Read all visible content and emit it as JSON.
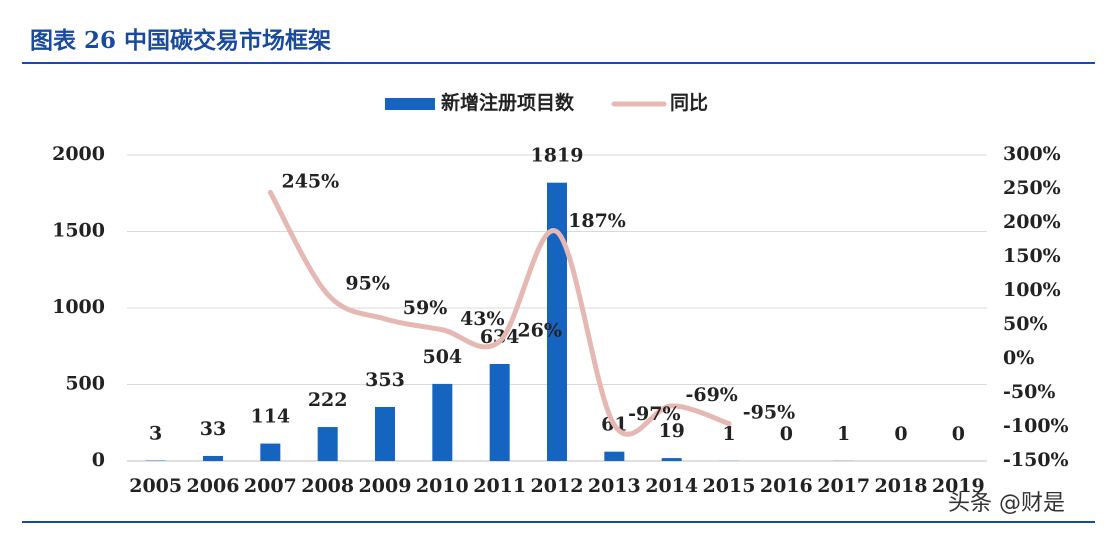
{
  "chart_data": {
    "type": "bar",
    "title": "图表 26   中国碳交易市场框架",
    "categories": [
      "2005",
      "2006",
      "2007",
      "2008",
      "2009",
      "2010",
      "2011",
      "2012",
      "2013",
      "2014",
      "2015",
      "2016",
      "2017",
      "2018",
      "2019"
    ],
    "series": [
      {
        "name": "新增注册项目数",
        "type": "bar",
        "color": "#1565c0",
        "values": [
          3,
          33,
          114,
          222,
          353,
          504,
          634,
          1819,
          61,
          19,
          1,
          0,
          1,
          0,
          0
        ]
      },
      {
        "name": "同比",
        "type": "line",
        "axis": "y2",
        "color": "#e6b8b4",
        "values": [
          null,
          null,
          245,
          95,
          59,
          43,
          26,
          187,
          -97,
          -69,
          -95,
          null,
          null,
          null,
          null
        ],
        "value_labels": [
          null,
          null,
          "245%",
          "95%",
          "59%",
          "43%",
          "26%",
          "187%",
          "-97%",
          "-69%",
          "-95%",
          null,
          null,
          null,
          null
        ]
      }
    ],
    "ylim": [
      0,
      2000
    ],
    "yticks": [
      0,
      500,
      1000,
      1500,
      2000
    ],
    "y2lim": [
      -150,
      300
    ],
    "y2ticks": [
      {
        "value": -150,
        "label": "-150%"
      },
      {
        "value": -100,
        "label": "-100%"
      },
      {
        "value": -50,
        "label": "-50%"
      },
      {
        "value": 0,
        "label": "0%"
      },
      {
        "value": 50,
        "label": "50%"
      },
      {
        "value": 100,
        "label": "100%"
      },
      {
        "value": 150,
        "label": "150%"
      },
      {
        "value": 200,
        "label": "200%"
      },
      {
        "value": 250,
        "label": "250%"
      },
      {
        "value": 300,
        "label": "300%"
      }
    ],
    "grid": true,
    "legend": "top",
    "watermark": "头条 @财是"
  }
}
